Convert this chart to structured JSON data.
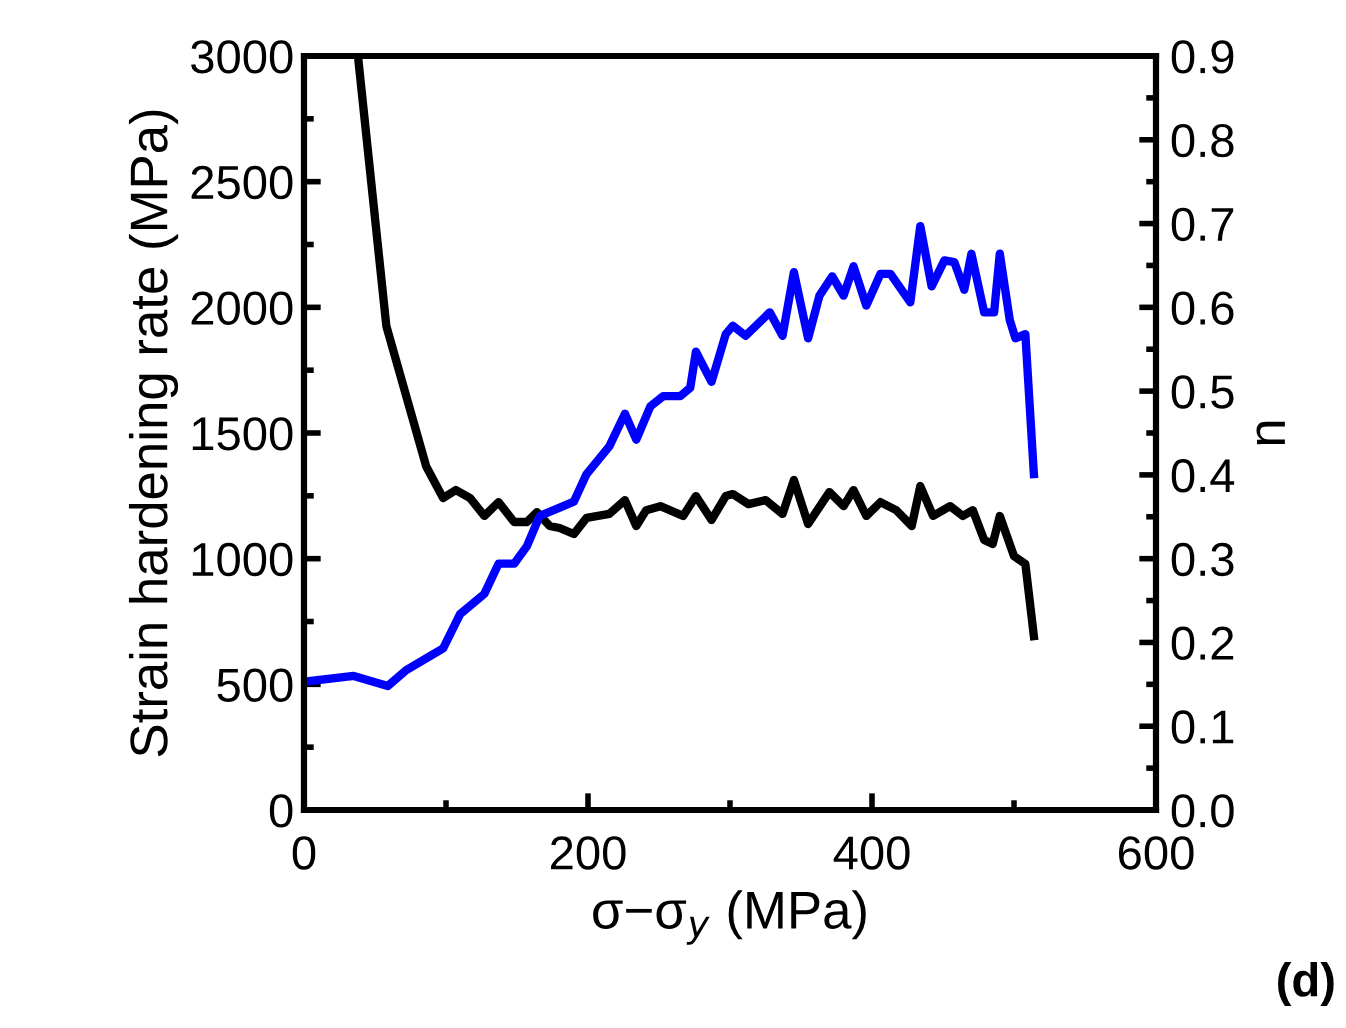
{
  "chart_data": {
    "type": "line",
    "xlabel": "σ−σ$_{y}$ (MPa)",
    "ylabel": "Strain hardening rate (MPa)",
    "y2label": "n",
    "annotations": [
      "(d)"
    ],
    "xlim": [
      0,
      600
    ],
    "xticks": [
      0,
      200,
      400,
      600
    ],
    "ylim": [
      0,
      3000
    ],
    "yticks": [
      0,
      500,
      1000,
      1500,
      2000,
      2500,
      3000
    ],
    "y2lim": [
      0.0,
      0.9
    ],
    "y2ticks": [
      {
        "value": 0.0,
        "label": "0.0"
      },
      {
        "value": 0.1,
        "label": "0.1"
      },
      {
        "value": 0.2,
        "label": "0.2"
      },
      {
        "value": 0.3,
        "label": "0.3"
      },
      {
        "value": 0.4,
        "label": "0.4"
      },
      {
        "value": 0.5,
        "label": "0.5"
      },
      {
        "value": 0.6,
        "label": "0.6"
      },
      {
        "value": 0.7,
        "label": "0.7"
      },
      {
        "value": 0.8,
        "label": "0.8"
      },
      {
        "value": 0.9,
        "label": "0.9"
      }
    ],
    "grid": false,
    "legend": false,
    "marker": "none",
    "line_style": "solid",
    "series": [
      {
        "color": "#000000",
        "x": [
          38,
          58,
          86,
          98,
          107,
          117,
          127,
          137,
          148,
          157,
          164,
          173,
          180,
          190,
          199,
          215,
          226,
          234,
          241,
          251,
          267,
          276,
          287,
          297,
          302,
          313,
          325,
          337,
          345,
          355,
          370,
          380,
          387,
          396,
          406,
          417,
          428,
          434,
          443,
          455,
          464,
          471,
          479,
          485,
          490,
          500,
          508,
          514
        ],
        "values": [
          3000,
          1925,
          1368,
          1241,
          1273,
          1241,
          1170,
          1225,
          1146,
          1146,
          1185,
          1130,
          1122,
          1098,
          1162,
          1178,
          1233,
          1130,
          1193,
          1209,
          1170,
          1249,
          1154,
          1249,
          1257,
          1217,
          1233,
          1178,
          1313,
          1138,
          1265,
          1209,
          1273,
          1170,
          1225,
          1193,
          1130,
          1289,
          1170,
          1209,
          1170,
          1193,
          1074,
          1058,
          1170,
          1010,
          979,
          692
        ]
      },
      {
        "color": "#0000ff",
        "axis": "y2",
        "x": [
          0,
          35,
          59,
          72,
          89,
          98,
          110,
          127,
          137,
          148,
          157,
          166,
          183,
          190,
          199,
          215,
          226,
          234,
          244,
          253,
          265,
          272,
          276,
          287,
          297,
          302,
          311,
          328,
          337,
          345,
          355,
          363,
          372,
          380,
          387,
          396,
          406,
          413,
          427,
          434,
          442,
          451,
          458,
          465,
          470,
          479,
          486,
          490,
          497,
          501,
          508,
          514
        ],
        "values": [
          0.153,
          0.16,
          0.148,
          0.167,
          0.184,
          0.193,
          0.234,
          0.258,
          0.294,
          0.294,
          0.315,
          0.351,
          0.363,
          0.368,
          0.401,
          0.434,
          0.473,
          0.442,
          0.482,
          0.494,
          0.494,
          0.504,
          0.547,
          0.511,
          0.568,
          0.578,
          0.566,
          0.594,
          0.566,
          0.642,
          0.563,
          0.614,
          0.637,
          0.614,
          0.649,
          0.602,
          0.64,
          0.64,
          0.606,
          0.697,
          0.625,
          0.656,
          0.654,
          0.621,
          0.664,
          0.594,
          0.594,
          0.664,
          0.585,
          0.563,
          0.568,
          0.401
        ]
      }
    ]
  }
}
